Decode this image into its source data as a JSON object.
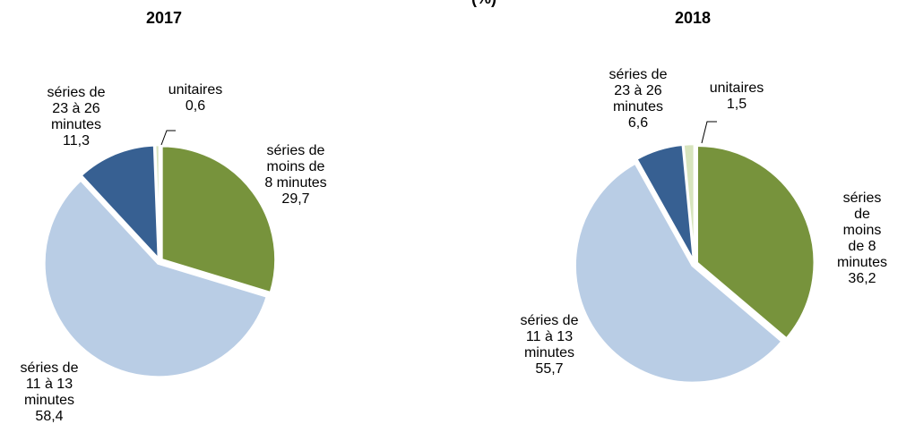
{
  "title": "(%)",
  "chart_data": [
    {
      "type": "pie",
      "title": "2017",
      "categories": [
        "séries de\nmoins de\n8 minutes",
        "séries de\n11 à 13\nminutes",
        "séries de\n23 à 26\nminutes",
        "unitaires"
      ],
      "values": [
        29.7,
        58.4,
        11.3,
        0.6
      ],
      "value_labels": [
        "29,7",
        "58,4",
        "11,3",
        "0,6"
      ],
      "colors": [
        "#77933c",
        "#b9cde5",
        "#376092",
        "#d7e4bd"
      ]
    },
    {
      "type": "pie",
      "title": "2018",
      "categories": [
        "séries de\nmoins de 8\nminutes",
        "séries de\n11 à 13\nminutes",
        "séries de\n23 à 26\nminutes",
        "unitaires"
      ],
      "values": [
        36.2,
        55.7,
        6.6,
        1.5
      ],
      "value_labels": [
        "36,2",
        "55,7",
        "6,6",
        "1,5"
      ],
      "colors": [
        "#77933c",
        "#b9cde5",
        "#376092",
        "#d7e4bd"
      ]
    }
  ]
}
